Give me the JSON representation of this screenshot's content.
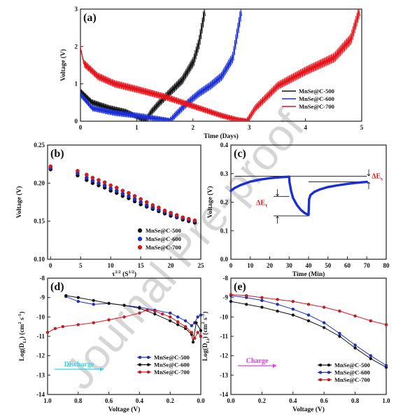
{
  "watermark": "Journal Pre-proof",
  "chart_data": [
    {
      "id": "a",
      "panel_label": "(a)",
      "type": "line",
      "xlabel": "Time (Days)",
      "ylabel": "Voltage (V)",
      "xlim": [
        0,
        5
      ],
      "ylim": [
        0,
        3
      ],
      "xticks": [
        "0",
        "1",
        "2",
        "3",
        "4",
        "5"
      ],
      "yticks": [
        "0",
        "1",
        "2",
        "3"
      ],
      "legend_position": "lower-right",
      "series": [
        {
          "name": "MnSe@C-500",
          "color": "#111111",
          "x": [
            0,
            0.2,
            0.5,
            0.8,
            1.0,
            1.1,
            1.15,
            1.25,
            1.4,
            1.6,
            1.8,
            2.0,
            2.1,
            2.2
          ],
          "y": [
            0.78,
            0.5,
            0.35,
            0.25,
            0.12,
            0.05,
            0.02,
            0.25,
            0.5,
            0.8,
            1.1,
            1.6,
            2.1,
            2.95
          ]
        },
        {
          "name": "MnSe@C-600",
          "color": "#1a2fd6",
          "x": [
            0,
            0.2,
            0.6,
            1.0,
            1.3,
            1.5,
            1.58,
            1.7,
            1.9,
            2.1,
            2.3,
            2.5,
            2.7,
            2.85
          ],
          "y": [
            0.7,
            0.35,
            0.22,
            0.15,
            0.08,
            0.03,
            0.01,
            0.2,
            0.5,
            0.75,
            0.95,
            1.2,
            1.7,
            2.95
          ]
        },
        {
          "name": "MnSe@C-700",
          "color": "#e3141b",
          "x": [
            0,
            0.05,
            0.3,
            0.6,
            1.0,
            1.5,
            2.0,
            2.5,
            2.8,
            2.95,
            3.1,
            3.5,
            4.0,
            4.5,
            4.8,
            4.95
          ],
          "y": [
            1.9,
            1.55,
            1.2,
            1.0,
            0.85,
            0.65,
            0.4,
            0.15,
            0.03,
            0.0,
            0.35,
            0.95,
            1.35,
            1.7,
            2.2,
            2.95
          ]
        }
      ]
    },
    {
      "id": "b",
      "panel_label": "(b)",
      "type": "scatter",
      "xlabel": "τ",
      "xlabel_sup1": "1/2",
      "xlabel_mid": " (S",
      "xlabel_sup2": "1/2",
      "xlabel_end": ")",
      "ylabel": "Voltage (V)",
      "xlim": [
        -0.5,
        25
      ],
      "ylim": [
        0.1,
        0.25
      ],
      "xticks": [
        "0",
        "5",
        "10",
        "15",
        "20",
        "25"
      ],
      "yticks": [
        "0.10",
        "0.15",
        "0.20",
        "0.25"
      ],
      "legend_position": "lower-right",
      "series": [
        {
          "name": "MnSe@C-500",
          "color": "#111111",
          "x": [
            0,
            4.5,
            6,
            7,
            8,
            9,
            10,
            11,
            12,
            13,
            14,
            15,
            16,
            17,
            18,
            19,
            20,
            21,
            22,
            23,
            24
          ],
          "y": [
            0.218,
            0.21,
            0.204,
            0.2,
            0.197,
            0.194,
            0.19,
            0.187,
            0.183,
            0.18,
            0.176,
            0.172,
            0.169,
            0.166,
            0.163,
            0.16,
            0.157,
            0.155,
            0.152,
            0.15,
            0.148
          ]
        },
        {
          "name": "MnSe@C-600",
          "color": "#1a2fd6",
          "x": [
            0,
            4.5,
            6,
            7,
            8,
            9,
            10,
            11,
            12,
            13,
            14,
            15,
            16,
            17,
            18,
            19,
            20,
            21,
            22,
            23,
            24
          ],
          "y": [
            0.22,
            0.213,
            0.207,
            0.203,
            0.2,
            0.197,
            0.193,
            0.19,
            0.186,
            0.183,
            0.179,
            0.175,
            0.171,
            0.168,
            0.165,
            0.162,
            0.159,
            0.156,
            0.154,
            0.152,
            0.15
          ]
        },
        {
          "name": "MnSe@C-700",
          "color": "#e3141b",
          "x": [
            0,
            4.5,
            6,
            7,
            8,
            9,
            10,
            11,
            12,
            13,
            14,
            15,
            16,
            17,
            18,
            19,
            20,
            21,
            22,
            23,
            24
          ],
          "y": [
            0.222,
            0.216,
            0.211,
            0.207,
            0.204,
            0.201,
            0.197,
            0.194,
            0.19,
            0.187,
            0.183,
            0.179,
            0.175,
            0.171,
            0.168,
            0.164,
            0.161,
            0.158,
            0.155,
            0.153,
            0.151
          ]
        }
      ]
    },
    {
      "id": "c",
      "panel_label": "(c)",
      "type": "line",
      "xlabel": "Time (Min)",
      "ylabel": "Voltage (V)",
      "xlim": [
        0,
        80
      ],
      "ylim": [
        0,
        0.4
      ],
      "xticks": [
        "0",
        "10",
        "20",
        "30",
        "40",
        "50",
        "60",
        "70",
        "80"
      ],
      "yticks": [
        "0.0",
        "0.1",
        "0.2",
        "0.3",
        "0.4"
      ],
      "color": "#1a2fd6",
      "x": [
        0,
        2,
        5,
        10,
        15,
        20,
        25,
        30,
        30.2,
        31,
        32,
        34,
        36,
        38,
        40,
        40.3,
        41,
        43,
        46,
        50,
        55,
        60,
        65,
        70
      ],
      "y": [
        0.24,
        0.25,
        0.26,
        0.272,
        0.279,
        0.284,
        0.287,
        0.289,
        0.27,
        0.24,
        0.215,
        0.19,
        0.173,
        0.162,
        0.155,
        0.21,
        0.225,
        0.236,
        0.245,
        0.253,
        0.259,
        0.264,
        0.268,
        0.271
      ],
      "annotations": [
        {
          "label": "ΔE",
          "sub": "s",
          "color": "#e3141b"
        },
        {
          "label": "ΔE",
          "sub": "τ",
          "color": "#e3141b"
        }
      ]
    },
    {
      "id": "d",
      "panel_label": "(d)",
      "type": "line",
      "xlabel": "Voltage (V)",
      "ylabel": "Log(D",
      "ylabel_sub": "Li",
      "ylabel_mid": ") (cm",
      "ylabel_sup1": "2",
      "ylabel_mid2": " s",
      "ylabel_sup2": "-1",
      "ylabel_end": ")",
      "xlim": [
        1.0,
        0.0
      ],
      "ylim": [
        -14,
        -8
      ],
      "xticks": [
        "1.0",
        "0.8",
        "0.6",
        "0.4",
        "0.2",
        "0.0"
      ],
      "yticks": [
        "-14",
        "-13",
        "-12",
        "-11",
        "-10",
        "-9",
        "-8"
      ],
      "arrow_label": "Discharge",
      "arrow_color": "#33d6e6",
      "legend_position": "lower-right",
      "series": [
        {
          "name": "MnSe@C-500",
          "color": "#1a2fd6",
          "x": [
            0.88,
            0.8,
            0.7,
            0.6,
            0.5,
            0.4,
            0.3,
            0.2,
            0.15,
            0.1,
            0.06,
            0.04,
            0.02,
            0.0
          ],
          "y": [
            -8.95,
            -9.2,
            -9.35,
            -9.3,
            -9.4,
            -9.5,
            -9.65,
            -9.8,
            -10.0,
            -10.2,
            -10.45,
            -10.3,
            -10.0,
            -9.9
          ]
        },
        {
          "name": "MnSe@C-600",
          "color": "#111111",
          "x": [
            0.88,
            0.8,
            0.7,
            0.6,
            0.5,
            0.4,
            0.3,
            0.2,
            0.15,
            0.1,
            0.06,
            0.05,
            0.03,
            0.0
          ],
          "y": [
            -8.9,
            -9.0,
            -9.15,
            -9.3,
            -9.4,
            -9.55,
            -9.85,
            -10.2,
            -10.4,
            -10.6,
            -10.9,
            -11.3,
            -10.3,
            -10.7
          ]
        },
        {
          "name": "MnSe@C-700",
          "color": "#e3141b",
          "x": [
            1.0,
            0.95,
            0.9,
            0.8,
            0.7,
            0.6,
            0.5,
            0.4,
            0.35,
            0.3,
            0.25,
            0.2,
            0.15,
            0.1,
            0.06,
            0.04,
            0.02,
            0.0
          ],
          "y": [
            -10.8,
            -10.6,
            -10.5,
            -10.4,
            -10.3,
            -10.15,
            -10.0,
            -9.8,
            -9.65,
            -9.7,
            -9.85,
            -10.0,
            -10.25,
            -10.5,
            -10.8,
            -11.1,
            -10.8,
            -11.0
          ]
        }
      ]
    },
    {
      "id": "e",
      "panel_label": "(e)",
      "type": "line",
      "xlabel": "Voltage (V)",
      "ylabel": "Log(D",
      "ylabel_sub": "Li",
      "ylabel_mid": ") (cm",
      "ylabel_sup1": "2",
      "ylabel_mid2": " s",
      "ylabel_sup2": "-1",
      "ylabel_end": ")",
      "xlim": [
        0.0,
        1.0
      ],
      "ylim": [
        -14,
        -8
      ],
      "xticks": [
        "0.0",
        "0.2",
        "0.4",
        "0.6",
        "0.8",
        "1.0"
      ],
      "yticks": [
        "-14",
        "-13",
        "-12",
        "-11",
        "-10",
        "-9",
        "-8"
      ],
      "arrow_label": "Charge",
      "arrow_color": "#e63ce6",
      "legend_position": "lower-right",
      "series": [
        {
          "name": "MnSe@C-500",
          "color": "#111111",
          "x": [
            0.0,
            0.1,
            0.2,
            0.3,
            0.4,
            0.5,
            0.6,
            0.7,
            0.8,
            0.9,
            1.0
          ],
          "y": [
            -9.2,
            -9.35,
            -9.5,
            -9.7,
            -9.9,
            -10.2,
            -10.55,
            -11.0,
            -11.6,
            -12.15,
            -12.6
          ]
        },
        {
          "name": "MnSe@C-600",
          "color": "#1a2fd6",
          "x": [
            0.0,
            0.1,
            0.2,
            0.3,
            0.4,
            0.5,
            0.6,
            0.7,
            0.8,
            0.9,
            1.0
          ],
          "y": [
            -8.9,
            -9.0,
            -9.15,
            -9.35,
            -9.6,
            -9.9,
            -10.3,
            -10.85,
            -11.45,
            -12.0,
            -12.5
          ]
        },
        {
          "name": "MnSe@C-700",
          "color": "#e3141b",
          "x": [
            0.0,
            0.1,
            0.2,
            0.3,
            0.4,
            0.5,
            0.6,
            0.7,
            0.8,
            0.9,
            1.0
          ],
          "y": [
            -8.85,
            -8.9,
            -9.0,
            -9.1,
            -9.2,
            -9.35,
            -9.5,
            -9.7,
            -9.95,
            -10.2,
            -10.4
          ]
        }
      ]
    }
  ]
}
